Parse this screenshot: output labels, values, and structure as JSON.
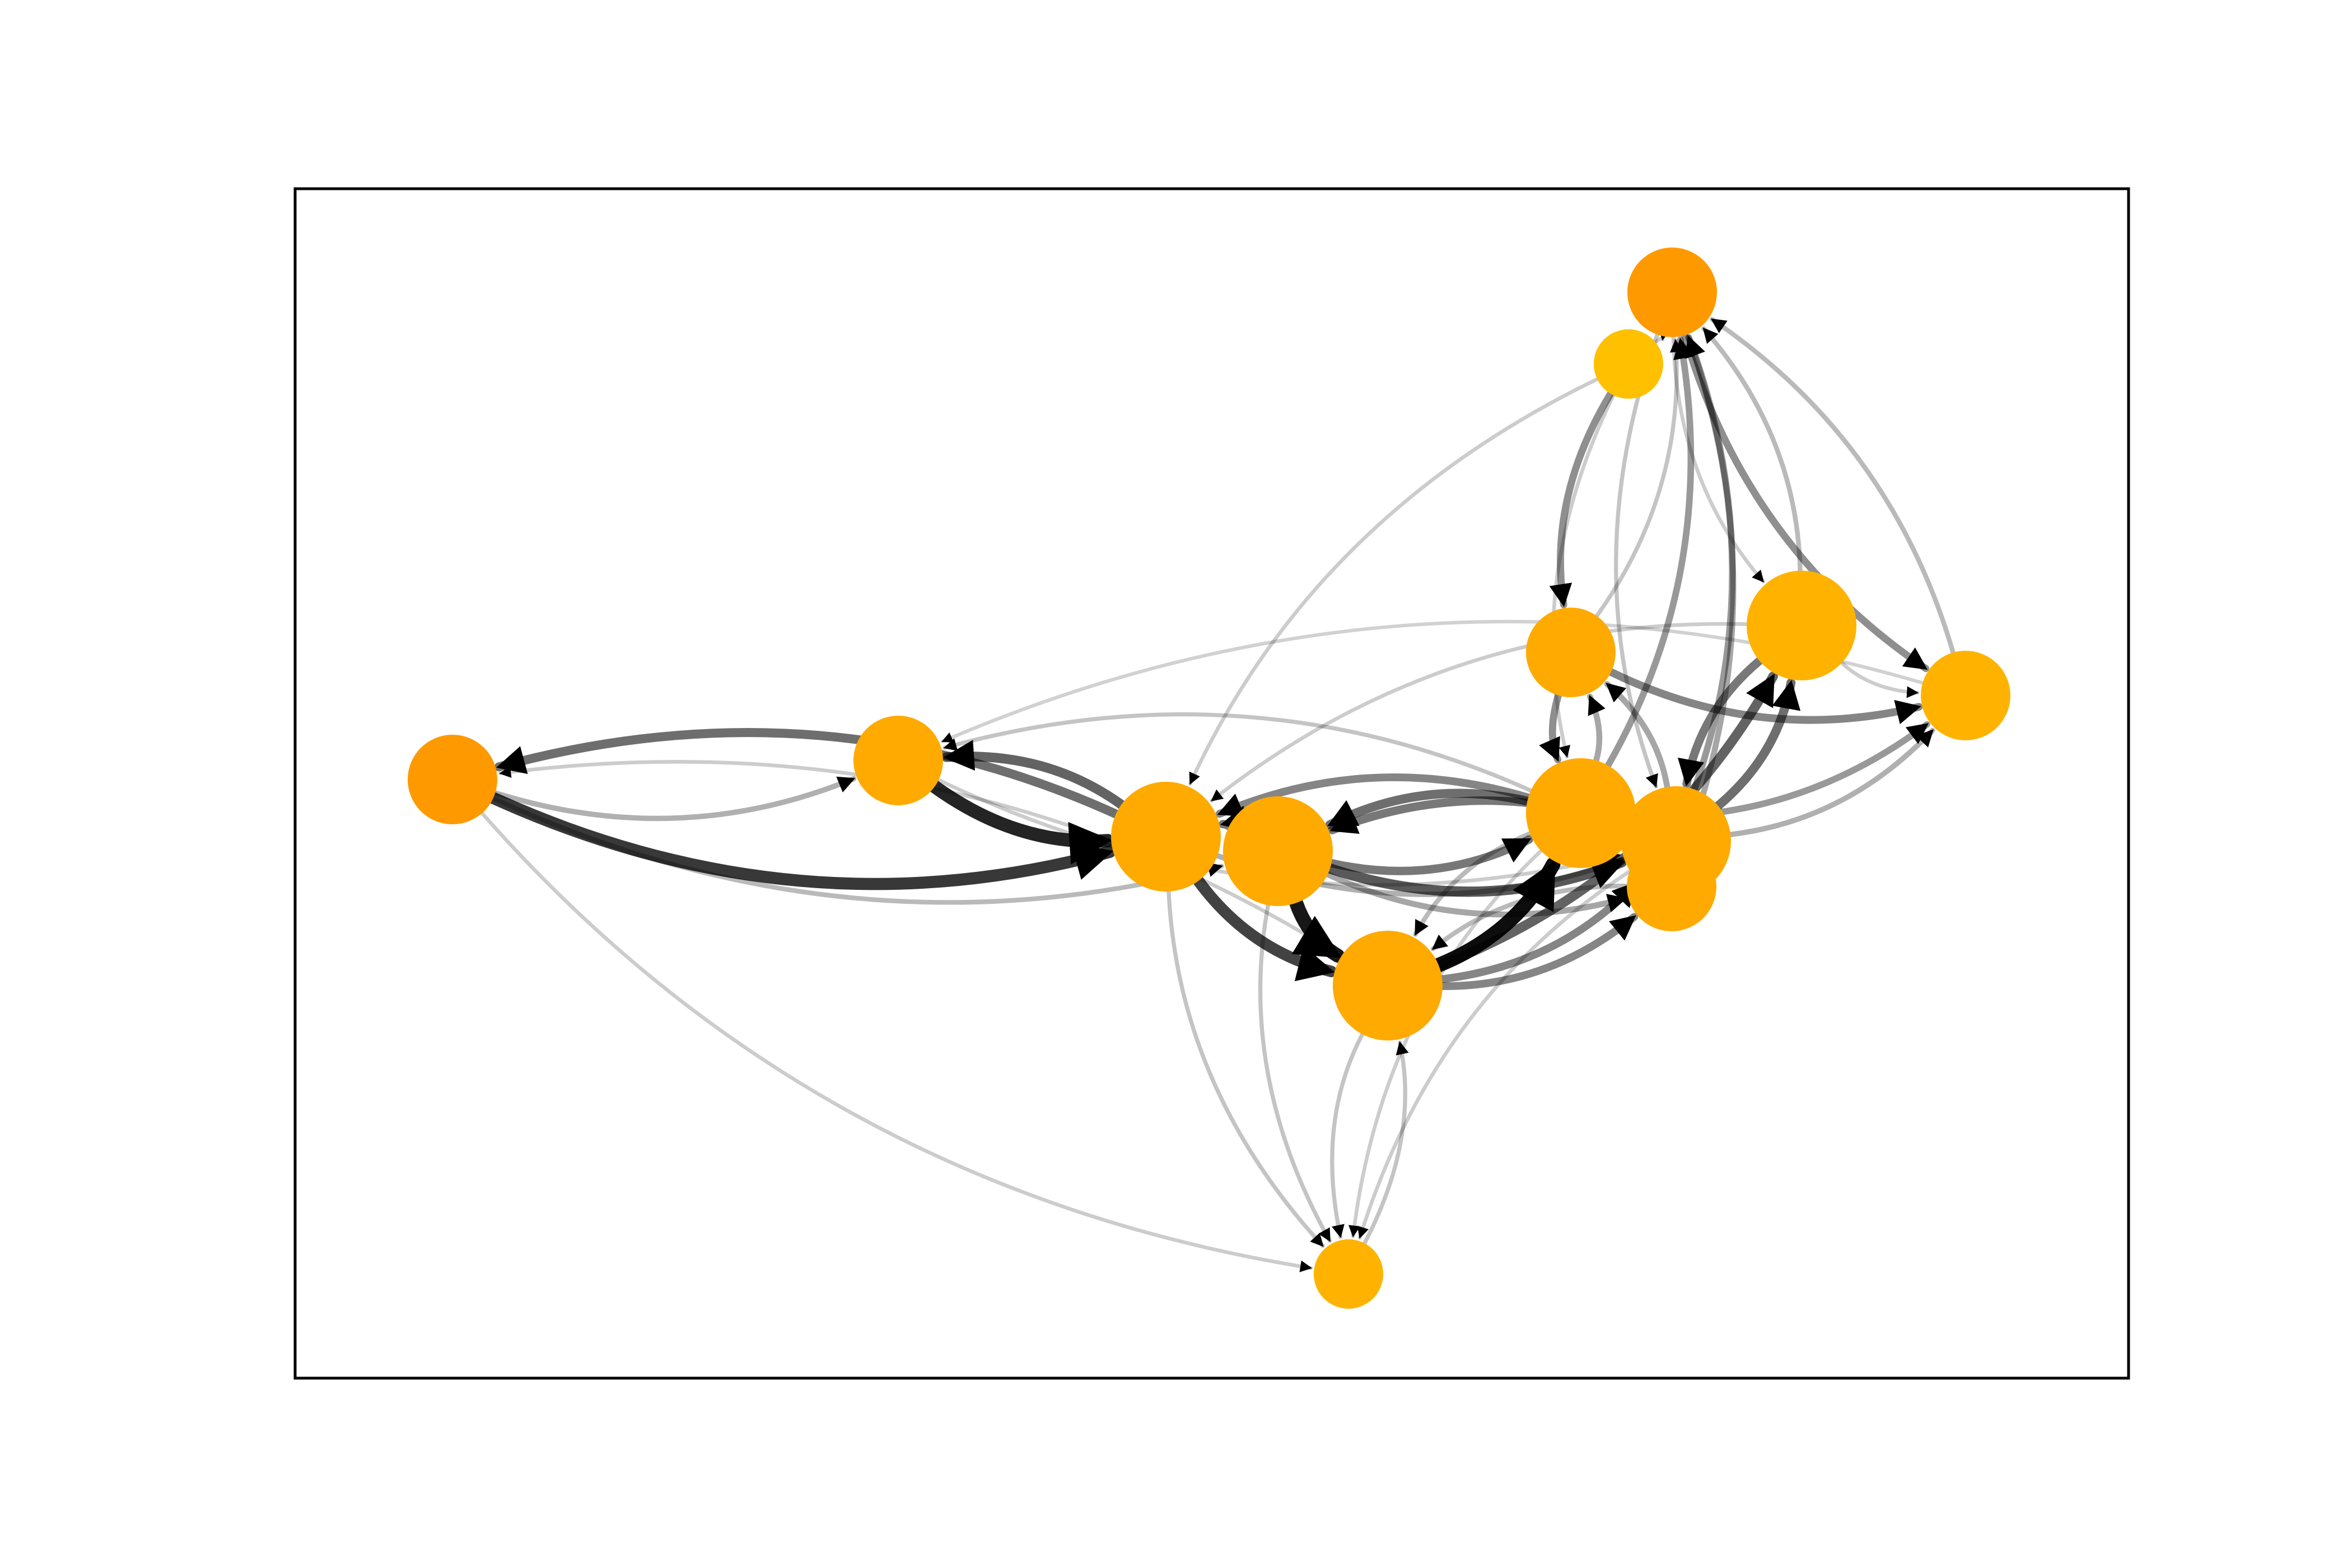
{
  "diagram": {
    "type": "directed-network",
    "title": "",
    "node_colors": {
      "dark_orange": "#FF9900",
      "orange": "#FFAA00",
      "amber": "#FFB300",
      "gold": "#FFC000"
    },
    "edge_color": "#000000",
    "nodes": [
      {
        "id": "n1",
        "color": "dark_orange",
        "size": "medium"
      },
      {
        "id": "n2",
        "color": "orange",
        "size": "medium"
      },
      {
        "id": "n3",
        "color": "orange",
        "size": "large"
      },
      {
        "id": "n4",
        "color": "orange",
        "size": "large"
      },
      {
        "id": "n5",
        "color": "orange",
        "size": "large"
      },
      {
        "id": "n6",
        "color": "orange",
        "size": "large"
      },
      {
        "id": "n7",
        "color": "orange",
        "size": "large"
      },
      {
        "id": "n8",
        "color": "orange",
        "size": "medium"
      },
      {
        "id": "n9",
        "color": "amber",
        "size": "medium"
      },
      {
        "id": "n10",
        "color": "gold",
        "size": "small"
      },
      {
        "id": "n11",
        "color": "dark_orange",
        "size": "medium"
      },
      {
        "id": "n12",
        "color": "orange",
        "size": "medium"
      },
      {
        "id": "n13",
        "color": "amber",
        "size": "large"
      },
      {
        "id": "n14",
        "color": "amber",
        "size": "small"
      }
    ],
    "edges": [
      {
        "from": "n5",
        "to": "n6",
        "weight": 1.0
      },
      {
        "from": "n4",
        "to": "n5",
        "weight": 0.95
      },
      {
        "from": "n2",
        "to": "n3",
        "weight": 0.9
      },
      {
        "from": "n1",
        "to": "n3",
        "weight": 0.8
      },
      {
        "from": "n3",
        "to": "n5",
        "weight": 0.75
      },
      {
        "from": "n4",
        "to": "n7",
        "weight": 0.65
      },
      {
        "from": "n5",
        "to": "n13",
        "weight": 0.6
      },
      {
        "from": "n3",
        "to": "n2",
        "weight": 0.6
      },
      {
        "from": "n6",
        "to": "n4",
        "weight": 0.55
      },
      {
        "from": "n3",
        "to": "n1",
        "weight": 0.55
      },
      {
        "from": "n7",
        "to": "n13",
        "weight": 0.55
      },
      {
        "from": "n7",
        "to": "n4",
        "weight": 0.5
      },
      {
        "from": "n4",
        "to": "n3",
        "weight": 0.5
      },
      {
        "from": "n4",
        "to": "n6",
        "weight": 0.5
      },
      {
        "from": "n13",
        "to": "n7",
        "weight": 0.5
      },
      {
        "from": "n5",
        "to": "n8",
        "weight": 0.45
      },
      {
        "from": "n5",
        "to": "n7",
        "weight": 0.45
      },
      {
        "from": "n6",
        "to": "n3",
        "weight": 0.45
      },
      {
        "from": "n12",
        "to": "n9",
        "weight": 0.45
      },
      {
        "from": "n11",
        "to": "n9",
        "weight": 0.4
      },
      {
        "from": "n10",
        "to": "n12",
        "weight": 0.4
      },
      {
        "from": "n12",
        "to": "n6",
        "weight": 0.4
      },
      {
        "from": "n6",
        "to": "n9",
        "weight": 0.35
      },
      {
        "from": "n7",
        "to": "n6",
        "weight": 0.35
      },
      {
        "from": "n8",
        "to": "n6",
        "weight": 0.35
      },
      {
        "from": "n6",
        "to": "n11",
        "weight": 0.35
      },
      {
        "from": "n7",
        "to": "n11",
        "weight": 0.35
      },
      {
        "from": "n8",
        "to": "n11",
        "weight": 0.3
      },
      {
        "from": "n6",
        "to": "n12",
        "weight": 0.3
      },
      {
        "from": "n7",
        "to": "n12",
        "weight": 0.3
      },
      {
        "from": "n4",
        "to": "n8",
        "weight": 0.3
      },
      {
        "from": "n1",
        "to": "n2",
        "weight": 0.25
      },
      {
        "from": "n3",
        "to": "n7",
        "weight": 0.25
      },
      {
        "from": "n1",
        "to": "n4",
        "weight": 0.2
      },
      {
        "from": "n9",
        "to": "n11",
        "weight": 0.2
      },
      {
        "from": "n7",
        "to": "n9",
        "weight": 0.25
      },
      {
        "from": "n13",
        "to": "n11",
        "weight": 0.2
      },
      {
        "from": "n5",
        "to": "n14",
        "weight": 0.15
      },
      {
        "from": "n14",
        "to": "n5",
        "weight": 0.15
      },
      {
        "from": "n4",
        "to": "n14",
        "weight": 0.15
      },
      {
        "from": "n3",
        "to": "n14",
        "weight": 0.15
      },
      {
        "from": "n6",
        "to": "n14",
        "weight": 0.12
      },
      {
        "from": "n7",
        "to": "n14",
        "weight": 0.12
      },
      {
        "from": "n1",
        "to": "n14",
        "weight": 0.12
      },
      {
        "from": "n10",
        "to": "n3",
        "weight": 0.12
      },
      {
        "from": "n9",
        "to": "n2",
        "weight": 0.1
      },
      {
        "from": "n10",
        "to": "n11",
        "weight": 0.12
      },
      {
        "from": "n11",
        "to": "n7",
        "weight": 0.15
      },
      {
        "from": "n6",
        "to": "n5",
        "weight": 0.2
      },
      {
        "from": "n13",
        "to": "n3",
        "weight": 0.12
      },
      {
        "from": "n12",
        "to": "n11",
        "weight": 0.15
      },
      {
        "from": "n8",
        "to": "n5",
        "weight": 0.2
      },
      {
        "from": "n5",
        "to": "n1",
        "weight": 0.12
      },
      {
        "from": "n6",
        "to": "n2",
        "weight": 0.15
      },
      {
        "from": "n13",
        "to": "n9",
        "weight": 0.12
      },
      {
        "from": "n11",
        "to": "n13",
        "weight": 0.12
      },
      {
        "from": "n2",
        "to": "n7",
        "weight": 0.12
      },
      {
        "from": "n10",
        "to": "n6",
        "weight": 0.12
      }
    ]
  }
}
